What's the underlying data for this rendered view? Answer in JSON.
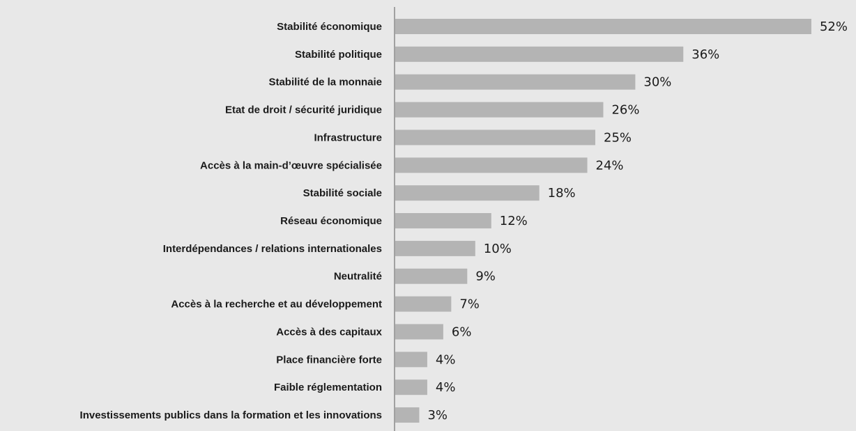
{
  "chart_data": {
    "type": "bar",
    "orientation": "horizontal",
    "color": "#b4b4b4",
    "categories": [
      "Stabilité économique",
      "Stabilité politique",
      "Stabilité de la monnaie",
      "Etat de droit / sécurité juridique",
      "Infrastructure",
      "Accès à la main-d’œuvre spécialisée",
      "Stabilité sociale",
      "Réseau économique",
      "Interdépendances / relations internationales",
      "Neutralité",
      "Accès à la recherche et au développement",
      "Accès à des capitaux",
      "Place financière forte",
      "Faible réglementation",
      "Investissements publics dans la formation et les innovations"
    ],
    "values": [
      52,
      36,
      30,
      26,
      25,
      24,
      18,
      12,
      10,
      9,
      7,
      6,
      4,
      4,
      3
    ],
    "value_labels": [
      "52%",
      "36%",
      "30%",
      "26%",
      "25%",
      "24%",
      "18%",
      "12%",
      "10%",
      "9%",
      "7%",
      "6%",
      "4%",
      "4%",
      "3%"
    ]
  }
}
